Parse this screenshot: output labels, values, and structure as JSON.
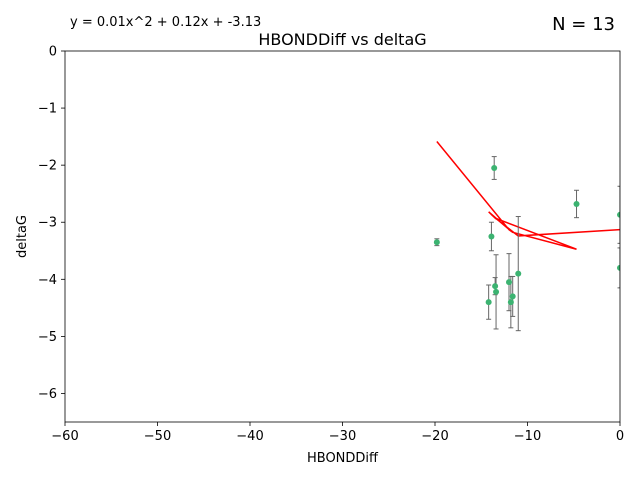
{
  "chart_data": {
    "type": "scatter",
    "title": "HBONDDiff vs deltaG",
    "xlabel": "HBONDDiff",
    "ylabel": "deltaG",
    "xlim": [
      -60,
      0
    ],
    "ylim": [
      -6.5,
      0
    ],
    "xticks": [
      -60,
      -50,
      -40,
      -30,
      -20,
      -10,
      0
    ],
    "yticks": [
      0,
      -1,
      -2,
      -3,
      -4,
      -5,
      -6
    ],
    "xtick_labels": [
      "−60",
      "−50",
      "−40",
      "−30",
      "−20",
      "−10",
      "0"
    ],
    "ytick_labels": [
      "0",
      "−1",
      "−2",
      "−3",
      "−4",
      "−5",
      "−6"
    ],
    "annotation_equation": "y = 0.01x^2 + 0.12x + -3.13",
    "annotation_count": "N = 13",
    "grid": false,
    "point_color": "#3cb371",
    "errorbar_color": "#666666",
    "fit_color": "#ff0000",
    "points": [
      {
        "x": -19.8,
        "y": -3.35,
        "err": 0.06
      },
      {
        "x": -14.2,
        "y": -4.4,
        "err": 0.3
      },
      {
        "x": -13.9,
        "y": -3.25,
        "err": 0.25
      },
      {
        "x": -13.6,
        "y": -2.05,
        "err": 0.2
      },
      {
        "x": -13.5,
        "y": -4.12,
        "err": 0.15
      },
      {
        "x": -13.4,
        "y": -4.22,
        "err": 0.65
      },
      {
        "x": -12.0,
        "y": -4.05,
        "err": 0.5
      },
      {
        "x": -11.8,
        "y": -4.4,
        "err": 0.45
      },
      {
        "x": -11.6,
        "y": -4.3,
        "err": 0.35
      },
      {
        "x": -11.0,
        "y": -3.9,
        "err": 1.0
      },
      {
        "x": -4.7,
        "y": -2.68,
        "err": 0.24
      },
      {
        "x": 0.0,
        "y": -2.87,
        "err": 0.5
      },
      {
        "x": 0.0,
        "y": -3.8,
        "err": 0.35
      }
    ],
    "fit_line_order": [
      -19.8,
      -12.0,
      -11.6,
      -4.7,
      -13.5,
      -13.4,
      -14.2,
      -11.8,
      -13.9,
      -13.6,
      -11.0,
      0.0,
      0.0
    ]
  }
}
